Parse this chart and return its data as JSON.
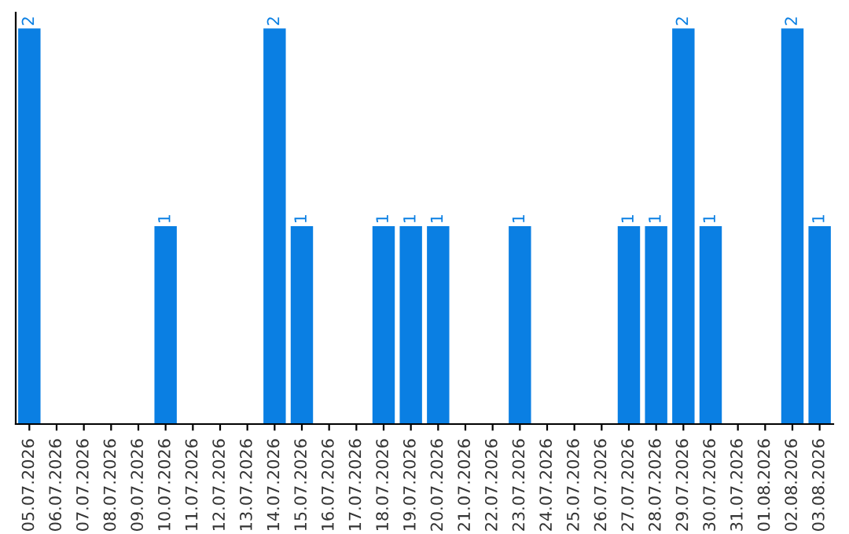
{
  "chart_data": {
    "type": "bar",
    "categories": [
      "05.07.2026",
      "06.07.2026",
      "07.07.2026",
      "08.07.2026",
      "09.07.2026",
      "10.07.2026",
      "11.07.2026",
      "12.07.2026",
      "13.07.2026",
      "14.07.2026",
      "15.07.2026",
      "16.07.2026",
      "17.07.2026",
      "18.07.2026",
      "19.07.2026",
      "20.07.2026",
      "21.07.2026",
      "22.07.2026",
      "23.07.2026",
      "24.07.2026",
      "25.07.2026",
      "26.07.2026",
      "27.07.2026",
      "28.07.2026",
      "29.07.2026",
      "30.07.2026",
      "31.07.2026",
      "01.08.2026",
      "02.08.2026",
      "03.08.2026"
    ],
    "values": [
      2,
      0,
      0,
      0,
      0,
      1,
      0,
      0,
      0,
      2,
      1,
      0,
      0,
      1,
      1,
      1,
      0,
      0,
      1,
      0,
      0,
      0,
      1,
      1,
      2,
      1,
      0,
      0,
      2,
      1
    ],
    "value_labels": [
      "2",
      null,
      null,
      null,
      null,
      "1",
      null,
      null,
      null,
      "2",
      "1",
      null,
      null,
      "1",
      "1",
      "1",
      null,
      null,
      "1",
      null,
      null,
      null,
      "1",
      "1",
      "2",
      "1",
      null,
      null,
      "2",
      "1"
    ],
    "color": "#0a7fe3",
    "tick_labels": "x",
    "grid": false,
    "legend": false
  }
}
